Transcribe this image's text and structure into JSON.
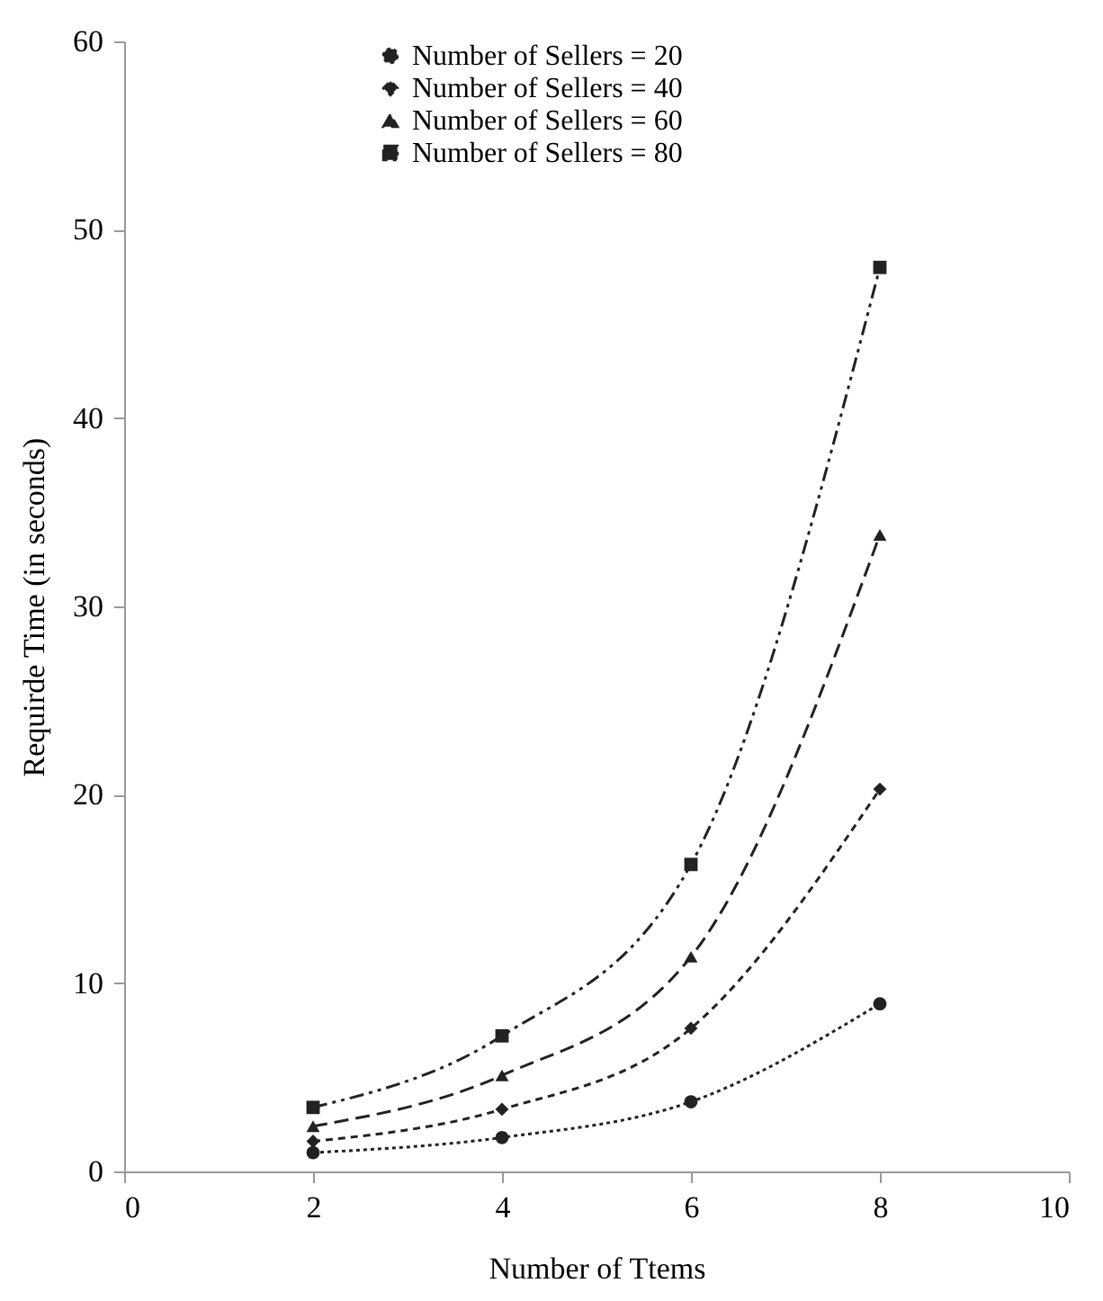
{
  "chart_data": {
    "type": "line",
    "xlabel": "Number of Ttems",
    "ylabel": "Requirde Time (in seconds)",
    "x": [
      2,
      4,
      6,
      8
    ],
    "series": [
      {
        "name": "Number of Sellers = 20",
        "color": "#222222",
        "values": [
          1.0,
          1.8,
          3.7,
          8.9
        ],
        "marker": "circle",
        "line_style": "dotted"
      },
      {
        "name": "Number of Sellers = 40",
        "color": "#222222",
        "values": [
          1.6,
          3.3,
          7.6,
          20.3
        ],
        "marker": "diamond",
        "line_style": "dashed"
      },
      {
        "name": "Number of Sellers = 60",
        "color": "#222222",
        "values": [
          2.4,
          5.1,
          11.4,
          33.8
        ],
        "marker": "triangle",
        "line_style": "dashed"
      },
      {
        "name": "Number of Sellers = 80",
        "color": "#222222",
        "values": [
          3.4,
          7.2,
          16.3,
          48.0
        ],
        "marker": "square",
        "line_style": "dashed"
      }
    ],
    "xlim": [
      0,
      10
    ],
    "xticks": [
      0,
      2,
      4,
      6,
      8,
      10
    ],
    "ylim": [
      0,
      60
    ],
    "yticks": [
      0,
      10,
      20,
      30,
      40,
      50,
      60
    ],
    "grid": false,
    "legend": "top"
  }
}
